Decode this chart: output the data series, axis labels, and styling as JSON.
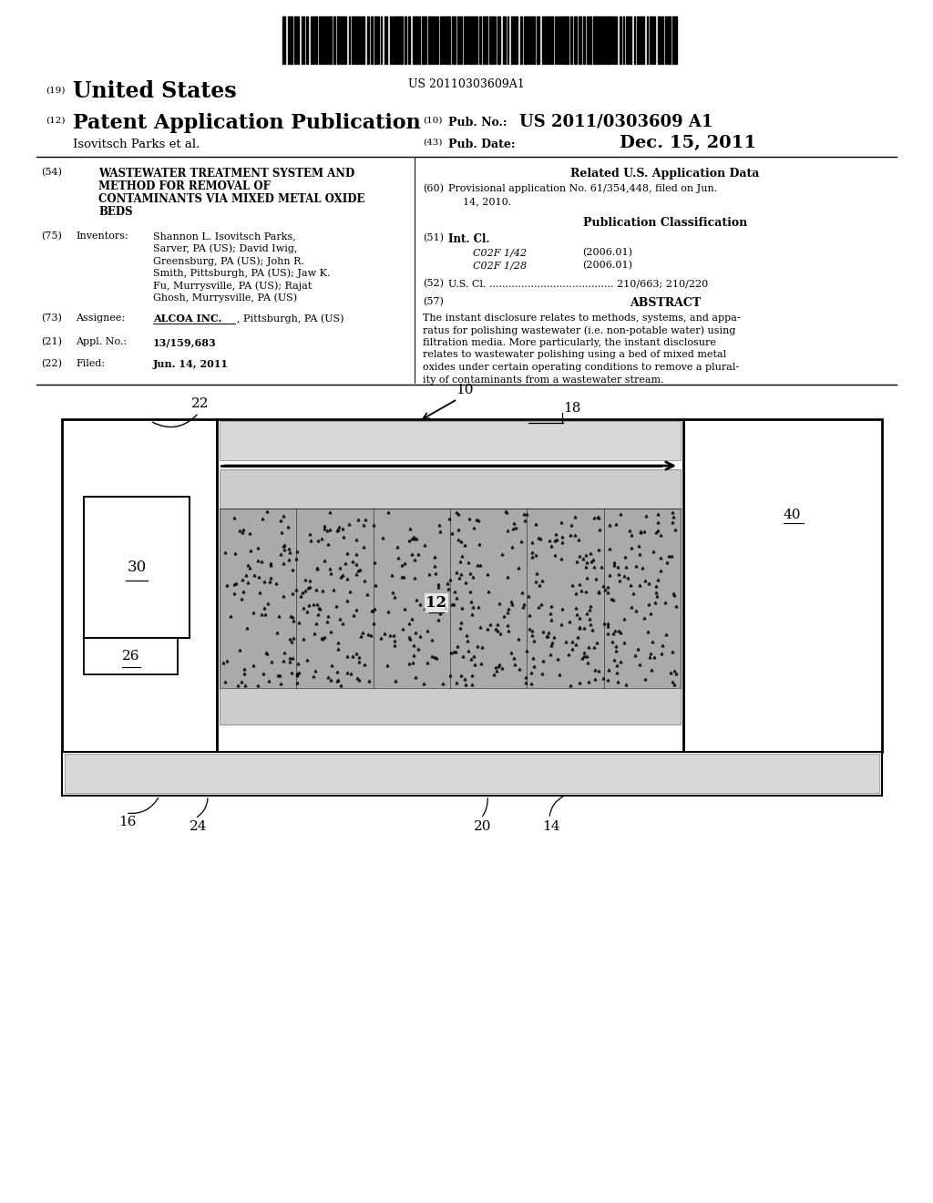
{
  "bg_color": "#ffffff",
  "barcode_text": "US 20110303609A1",
  "label_19": "(19)",
  "united_states": "United States",
  "label_12": "(12)",
  "patent_app_pub": "Patent Application Publication",
  "inventors_line": "Isovitsch Parks et al.",
  "label_10": "(10)",
  "pub_no_label": "Pub. No.:",
  "pub_no": "US 2011/0303609 A1",
  "label_43": "(43)",
  "pub_date_label": "Pub. Date:",
  "pub_date": "Dec. 15, 2011",
  "label_54": "(54)",
  "title_line1": "WASTEWATER TREATMENT SYSTEM AND",
  "title_line2": "METHOD FOR REMOVAL OF",
  "title_line3": "CONTAMINANTS VIA MIXED METAL OXIDE",
  "title_line4": "BEDS",
  "related_us_data": "Related U.S. Application Data",
  "label_60": "(60)",
  "prov_line1": "Provisional application No. 61/354,448, filed on Jun.",
  "prov_line2": "14, 2010.",
  "pub_classification": "Publication Classification",
  "label_51": "(51)",
  "int_cl_label": "Int. Cl.",
  "co2f_142": "C02F 1/42",
  "year_142": "(2006.01)",
  "co2f_128": "C02F 1/28",
  "year_128": "(2006.01)",
  "label_52": "(52)",
  "us_cl_full": "U.S. Cl. ....................................... 210/663; 210/220",
  "label_57": "(57)",
  "abstract_label": "ABSTRACT",
  "abstract_lines": [
    "The instant disclosure relates to methods, systems, and appa-",
    "ratus for polishing wastewater (i.e. non-potable water) using",
    "filtration media. More particularly, the instant disclosure",
    "relates to wastewater polishing using a bed of mixed metal",
    "oxides under certain operating conditions to remove a plural-",
    "ity of contaminants from a wastewater stream."
  ],
  "label_75": "(75)",
  "inventors_label": "Inventors:",
  "inv_lines": [
    "Shannon L. Isovitsch Parks,",
    "Sarver, PA (US); David Iwig,",
    "Greensburg, PA (US); John R.",
    "Smith, Pittsburgh, PA (US); Jaw K.",
    "Fu, Murrysville, PA (US); Rajat",
    "Ghosh, Murrysville, PA (US)"
  ],
  "label_73": "(73)",
  "assignee_label": "Assignee:",
  "assignee_bold": "ALCOA INC.",
  "assignee_rest": ", Pittsburgh, PA (US)",
  "label_21": "(21)",
  "appl_no_label": "Appl. No.:",
  "appl_no": "13/159,683",
  "label_22": "(22)",
  "filed_label": "Filed:",
  "filed_date": "Jun. 14, 2011"
}
